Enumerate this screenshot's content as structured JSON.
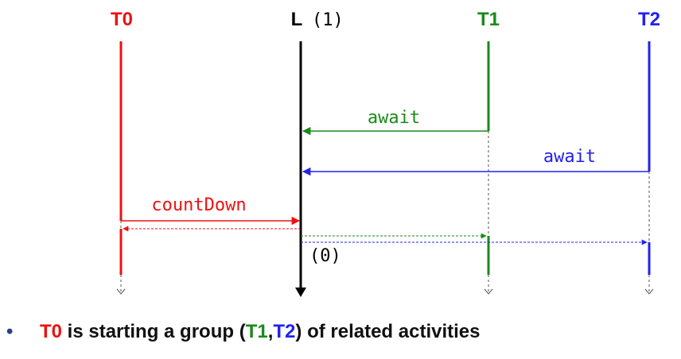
{
  "colors": {
    "t0": "#ee1111",
    "latch": "#000000",
    "t1": "#1a8a1a",
    "t2": "#2222ee",
    "dash": "#555555"
  },
  "diagram": {
    "threads": {
      "t0": "T0",
      "latch": "L",
      "latch_count": "(1)",
      "t1": "T1",
      "t2": "T2"
    },
    "messages": {
      "t1_await": "await",
      "t2_await": "await",
      "t0_countdown": "countDown",
      "latch_zero": "(0)"
    }
  },
  "caption": {
    "bullet": "•",
    "part1": "T0",
    "part2": " is starting a group (",
    "part3": "T1",
    "part4": ",",
    "part5": "T2",
    "part6": ") of related activities"
  }
}
